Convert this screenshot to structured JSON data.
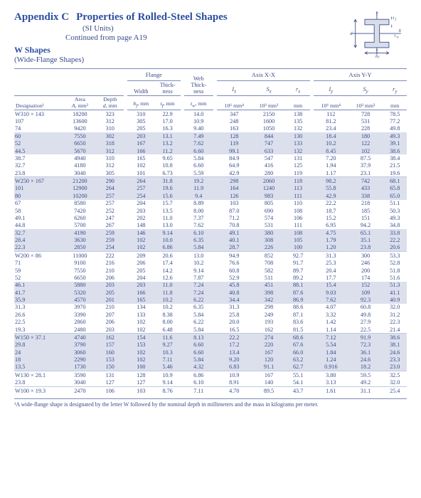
{
  "header": {
    "appendix": "Appendix C",
    "title": "Properties of Rolled-Steel Shapes",
    "subtitle": "(SI Units)",
    "continued": "Continued from page A19",
    "shapes_label": "W Shapes",
    "shapes_sub": "(Wide-Flange Shapes)"
  },
  "fig": {
    "d_label": "d",
    "Y": "Y",
    "X": "X",
    "tf": "t_f",
    "tw": "t_w",
    "bf": "b_f"
  },
  "columns": {
    "designation": "Designation¹",
    "area": "Area",
    "area_u": "A, mm²",
    "depth": "Depth",
    "depth_u": "d, mm",
    "flange": "Flange",
    "width": "Width",
    "width_u": "b_f, mm",
    "thick": "Thick-\nness",
    "thick_u": "t_f, mm",
    "web": "Web\nThick-\nness",
    "web_u": "t_w, mm",
    "axis_x": "Axis X-X",
    "axis_y": "Axis Y-Y",
    "Ix": "I_x",
    "Ix_u": "10⁶ mm⁴",
    "Sx": "S_x",
    "Sx_u": "10³ mm³",
    "rx": "r_x",
    "rx_u": "mm",
    "Iy": "I_y",
    "Iy_u": "10⁶ mm⁴",
    "Sy": "S_y",
    "Sy_u": "10³ mm³",
    "ry": "r_y",
    "ry_u": "mm"
  },
  "groups": [
    {
      "rows": [
        {
          "d": "W310 × 143",
          "a": "18200",
          "dep": "323",
          "bf": "310",
          "tf": "22.9",
          "tw": "14.0",
          "ix": "347",
          "sx": "2150",
          "rx": "138",
          "iy": "112",
          "sy": "728",
          "ry": "78.5"
        },
        {
          "d": "107",
          "a": "13600",
          "dep": "312",
          "bf": "305",
          "tf": "17.0",
          "tw": "10.9",
          "ix": "248",
          "sx": "1600",
          "rx": "135",
          "iy": "81.2",
          "sy": "531",
          "ry": "77.2"
        },
        {
          "d": "74",
          "a": "9420",
          "dep": "310",
          "bf": "205",
          "tf": "16.3",
          "tw": "9.40",
          "ix": "163",
          "sx": "1050",
          "rx": "132",
          "iy": "23.4",
          "sy": "228",
          "ry": "49.8"
        },
        {
          "d": "60",
          "a": "7550",
          "dep": "302",
          "bf": "203",
          "tf": "13.1",
          "tw": "7.49",
          "ix": "128",
          "sx": "844",
          "rx": "130",
          "iy": "18.4",
          "sy": "180",
          "ry": "49.3",
          "sh": true
        },
        {
          "d": "52",
          "a": "6650",
          "dep": "318",
          "bf": "167",
          "tf": "13.2",
          "tw": "7.62",
          "ix": "119",
          "sx": "747",
          "rx": "133",
          "iy": "10.2",
          "sy": "122",
          "ry": "39.1",
          "sh": true
        },
        {
          "d": "44.5",
          "a": "5670",
          "dep": "312",
          "bf": "166",
          "tf": "11.2",
          "tw": "6.60",
          "ix": "99.1",
          "sx": "633",
          "rx": "132",
          "iy": "8.45",
          "sy": "102",
          "ry": "38.6",
          "sh": true
        },
        {
          "d": "38.7",
          "a": "4940",
          "dep": "310",
          "bf": "165",
          "tf": "9.65",
          "tw": "5.84",
          "ix": "84.9",
          "sx": "547",
          "rx": "131",
          "iy": "7.20",
          "sy": "87.5",
          "ry": "38.4"
        },
        {
          "d": "32.7",
          "a": "4180",
          "dep": "312",
          "bf": "102",
          "tf": "10.8",
          "tw": "6.60",
          "ix": "64.9",
          "sx": "416",
          "rx": "125",
          "iy": "1.94",
          "sy": "37.9",
          "ry": "21.5"
        },
        {
          "d": "23.8",
          "a": "3040",
          "dep": "305",
          "bf": "101",
          "tf": "6.73",
          "tw": "5.59",
          "ix": "42.9",
          "sx": "280",
          "rx": "119",
          "iy": "1.17",
          "sy": "23.1",
          "ry": "19.6"
        }
      ]
    },
    {
      "rows": [
        {
          "d": "W250 × 167",
          "a": "21200",
          "dep": "290",
          "bf": "264",
          "tf": "31.8",
          "tw": "19.2",
          "ix": "298",
          "sx": "2060",
          "rx": "118",
          "iy": "98.2",
          "sy": "742",
          "ry": "68.1",
          "sh": true
        },
        {
          "d": "101",
          "a": "12900",
          "dep": "264",
          "bf": "257",
          "tf": "19.6",
          "tw": "11.9",
          "ix": "164",
          "sx": "1240",
          "rx": "113",
          "iy": "55.8",
          "sy": "433",
          "ry": "65.8",
          "sh": true
        },
        {
          "d": "80",
          "a": "10200",
          "dep": "257",
          "bf": "254",
          "tf": "15.6",
          "tw": "9.4",
          "ix": "126",
          "sx": "983",
          "rx": "111",
          "iy": "42.9",
          "sy": "338",
          "ry": "65.0",
          "sh": true
        },
        {
          "d": "67",
          "a": "8580",
          "dep": "257",
          "bf": "204",
          "tf": "15.7",
          "tw": "8.89",
          "ix": "103",
          "sx": "805",
          "rx": "110",
          "iy": "22.2",
          "sy": "218",
          "ry": "51.1"
        },
        {
          "d": "58",
          "a": "7420",
          "dep": "252",
          "bf": "203",
          "tf": "13.5",
          "tw": "8.00",
          "ix": "87.0",
          "sx": "690",
          "rx": "108",
          "iy": "18.7",
          "sy": "185",
          "ry": "50.3"
        },
        {
          "d": "49.1",
          "a": "6260",
          "dep": "247",
          "bf": "202",
          "tf": "11.0",
          "tw": "7.37",
          "ix": "71.2",
          "sx": "574",
          "rx": "106",
          "iy": "15.2",
          "sy": "151",
          "ry": "49.3"
        },
        {
          "d": "44.8",
          "a": "5700",
          "dep": "267",
          "bf": "148",
          "tf": "13.0",
          "tw": "7.62",
          "ix": "70.8",
          "sx": "531",
          "rx": "111",
          "iy": "6.95",
          "sy": "94.2",
          "ry": "34.8"
        },
        {
          "d": "32.7",
          "a": "4190",
          "dep": "259",
          "bf": "146",
          "tf": "9.14",
          "tw": "6.10",
          "ix": "49.1",
          "sx": "380",
          "rx": "108",
          "iy": "4.75",
          "sy": "65.1",
          "ry": "33.8",
          "sh": true
        },
        {
          "d": "28.4",
          "a": "3630",
          "dep": "259",
          "bf": "102",
          "tf": "10.0",
          "tw": "6.35",
          "ix": "40.1",
          "sx": "308",
          "rx": "105",
          "iy": "1.79",
          "sy": "35.1",
          "ry": "22.2",
          "sh": true
        },
        {
          "d": "22.3",
          "a": "2850",
          "dep": "254",
          "bf": "102",
          "tf": "6.86",
          "tw": "5.84",
          "ix": "28.7",
          "sx": "226",
          "rx": "100",
          "iy": "1.20",
          "sy": "23.8",
          "ry": "20.6",
          "sh": true
        }
      ]
    },
    {
      "rows": [
        {
          "d": "W200 × 86",
          "a": "11000",
          "dep": "222",
          "bf": "209",
          "tf": "20.6",
          "tw": "13.0",
          "ix": "94.9",
          "sx": "852",
          "rx": "92.7",
          "iy": "31.3",
          "sy": "300",
          "ry": "53.3"
        },
        {
          "d": "71",
          "a": "9100",
          "dep": "216",
          "bf": "206",
          "tf": "17.4",
          "tw": "10.2",
          "ix": "76.6",
          "sx": "708",
          "rx": "91.7",
          "iy": "25.3",
          "sy": "246",
          "ry": "52.8"
        },
        {
          "d": "59",
          "a": "7550",
          "dep": "210",
          "bf": "205",
          "tf": "14.2",
          "tw": "9.14",
          "ix": "60.8",
          "sx": "582",
          "rx": "89.7",
          "iy": "20.4",
          "sy": "200",
          "ry": "51.8"
        },
        {
          "d": "52",
          "a": "6650",
          "dep": "206",
          "bf": "204",
          "tf": "12.6",
          "tw": "7.87",
          "ix": "52.9",
          "sx": "511",
          "rx": "89.2",
          "iy": "17.7",
          "sy": "174",
          "ry": "51.6"
        },
        {
          "d": "46.1",
          "a": "5880",
          "dep": "203",
          "bf": "203",
          "tf": "11.0",
          "tw": "7.24",
          "ix": "45.8",
          "sx": "451",
          "rx": "88.1",
          "iy": "15.4",
          "sy": "152",
          "ry": "51.3",
          "sh": true
        },
        {
          "d": "41.7",
          "a": "5320",
          "dep": "205",
          "bf": "166",
          "tf": "11.8",
          "tw": "7.24",
          "ix": "40.8",
          "sx": "398",
          "rx": "87.6",
          "iy": "9.03",
          "sy": "109",
          "ry": "41.1",
          "sh": true
        },
        {
          "d": "35.9",
          "a": "4570",
          "dep": "201",
          "bf": "165",
          "tf": "10.2",
          "tw": "6.22",
          "ix": "34.4",
          "sx": "342",
          "rx": "86.9",
          "iy": "7.62",
          "sy": "92.3",
          "ry": "40.9",
          "sh": true
        },
        {
          "d": "31.3",
          "a": "3970",
          "dep": "210",
          "bf": "134",
          "tf": "10.2",
          "tw": "6.35",
          "ix": "31.3",
          "sx": "298",
          "rx": "88.6",
          "iy": "4.07",
          "sy": "60.8",
          "ry": "32.0"
        },
        {
          "d": "26.6",
          "a": "3390",
          "dep": "207",
          "bf": "133",
          "tf": "8.38",
          "tw": "5.84",
          "ix": "25.8",
          "sx": "249",
          "rx": "87.1",
          "iy": "3.32",
          "sy": "49.8",
          "ry": "31.2"
        },
        {
          "d": "22.5",
          "a": "2860",
          "dep": "206",
          "bf": "102",
          "tf": "8.00",
          "tw": "6.22",
          "ix": "20.0",
          "sx": "193",
          "rx": "83.6",
          "iy": "1.42",
          "sy": "27.9",
          "ry": "22.3"
        },
        {
          "d": "19.3",
          "a": "2480",
          "dep": "203",
          "bf": "102",
          "tf": "6.48",
          "tw": "5.84",
          "ix": "16.5",
          "sx": "162",
          "rx": "81.5",
          "iy": "1.14",
          "sy": "22.5",
          "ry": "21.4"
        }
      ]
    },
    {
      "rows": [
        {
          "d": "W150 × 37.1",
          "a": "4740",
          "dep": "162",
          "bf": "154",
          "tf": "11.6",
          "tw": "8.13",
          "ix": "22.2",
          "sx": "274",
          "rx": "68.6",
          "iy": "7.12",
          "sy": "91.9",
          "ry": "38.6",
          "sh": true
        },
        {
          "d": "29.8",
          "a": "3790",
          "dep": "157",
          "bf": "153",
          "tf": "9.27",
          "tw": "6.60",
          "ix": "17.2",
          "sx": "220",
          "rx": "67.6",
          "iy": "5.54",
          "sy": "72.3",
          "ry": "38.1",
          "sh": true
        },
        {
          "d": "24",
          "a": "3060",
          "dep": "160",
          "bf": "102",
          "tf": "10.3",
          "tw": "6.60",
          "ix": "13.4",
          "sx": "167",
          "rx": "66.0",
          "iy": "1.84",
          "sy": "36.1",
          "ry": "24.6",
          "sh": true
        },
        {
          "d": "18",
          "a": "2290",
          "dep": "153",
          "bf": "102",
          "tf": "7.11",
          "tw": "5.84",
          "ix": "9.20",
          "sx": "120",
          "rx": "63.2",
          "iy": "1.24",
          "sy": "24.6",
          "ry": "23.3",
          "sh": true
        },
        {
          "d": "13.5",
          "a": "1730",
          "dep": "150",
          "bf": "100",
          "tf": "5.46",
          "tw": "4.32",
          "ix": "6.83",
          "sx": "91.1",
          "rx": "62.7",
          "iy": "0.916",
          "sy": "18.2",
          "ry": "23.0",
          "sh": true
        }
      ]
    },
    {
      "rows": [
        {
          "d": "W130 × 28.1",
          "a": "3590",
          "dep": "131",
          "bf": "128",
          "tf": "10.9",
          "tw": "6.86",
          "ix": "10.9",
          "sx": "167",
          "rx": "55.1",
          "iy": "3.80",
          "sy": "59.5",
          "ry": "32.5"
        },
        {
          "d": "23.8",
          "a": "3040",
          "dep": "127",
          "bf": "127",
          "tf": "9.14",
          "tw": "6.10",
          "ix": "8.91",
          "sx": "140",
          "rx": "54.1",
          "iy": "3.13",
          "sy": "49.2",
          "ry": "32.0"
        }
      ]
    },
    {
      "rows": [
        {
          "d": "W100 × 19.3",
          "a": "2470",
          "dep": "106",
          "bf": "103",
          "tf": "8.76",
          "tw": "7.11",
          "ix": "4.70",
          "sx": "89.5",
          "rx": "43.7",
          "iy": "1.61",
          "sy": "31.1",
          "ry": "25.4"
        }
      ]
    }
  ],
  "footnote": "¹A wide-flange shape is designated by the letter W followed by the nominal depth in millimeters and the mass in kilograms per meter."
}
